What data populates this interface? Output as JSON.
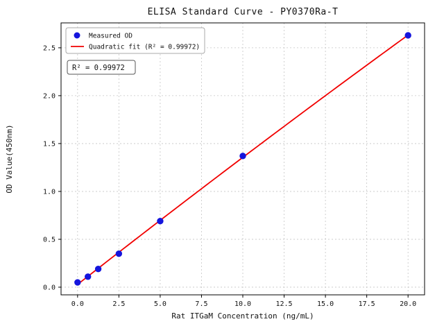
{
  "chart_data": {
    "type": "scatter",
    "title": "ELISA Standard Curve - PY0370Ra-T",
    "xlabel": "Rat ITGaM Concentration (ng/mL)",
    "ylabel": "OD Value(450nm)",
    "xlim": [
      -1,
      21
    ],
    "ylim": [
      -0.08,
      2.76
    ],
    "xticks": [
      0.0,
      2.5,
      5.0,
      7.5,
      10.0,
      12.5,
      15.0,
      17.5,
      20.0
    ],
    "yticks": [
      0.0,
      0.5,
      1.0,
      1.5,
      2.0,
      2.5
    ],
    "grid": "dashed",
    "legend_position": "upper left",
    "annotation": "R² = 0.99972",
    "series": [
      {
        "name": "Measured OD",
        "type": "scatter",
        "color": "#1515dd",
        "x": [
          0,
          0.625,
          1.25,
          2.5,
          5,
          10,
          20
        ],
        "y": [
          0.05,
          0.11,
          0.19,
          0.35,
          0.69,
          1.37,
          2.63
        ]
      },
      {
        "name": "Quadratic fit (R² = 0.99972)",
        "type": "line",
        "fit": "quadratic",
        "color": "#f10000",
        "r_squared": 0.99972,
        "x_range": [
          0,
          20
        ]
      }
    ]
  }
}
